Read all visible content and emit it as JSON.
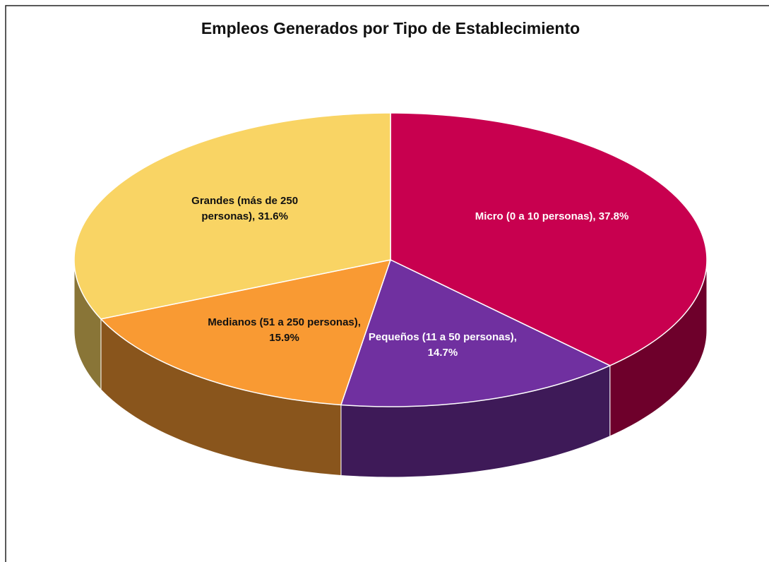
{
  "chart_data": {
    "type": "pie3d",
    "title": "Empleos Generados por Tipo de Establecimiento",
    "values": [
      37.8,
      14.7,
      15.9,
      31.6
    ],
    "value_labels": [
      "Micro (0 a 10 personas), 37.8%",
      "Pequeños (11 a 50 personas), 14.7%",
      "Medianos (51 a 250 personas), 15.9%",
      "Grandes (más de 250 personas), 31.6%"
    ],
    "colors": [
      "#c8004f",
      "#7030a0",
      "#f99a33",
      "#f9d464"
    ]
  }
}
